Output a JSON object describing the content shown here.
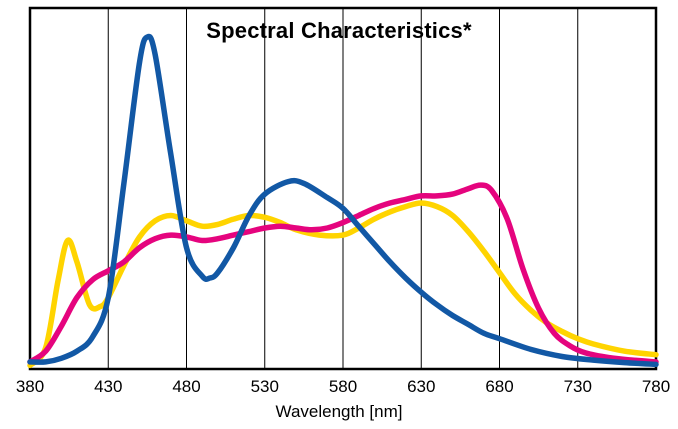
{
  "chart_data": {
    "type": "line",
    "title": "Spectral Characteristics*",
    "xlabel": "Wavelength [nm]",
    "ylabel": "",
    "xlim": [
      380,
      780
    ],
    "ylim": [
      0,
      1
    ],
    "x_ticks": [
      380,
      430,
      480,
      530,
      580,
      630,
      680,
      730,
      780
    ],
    "grid": "vertical",
    "legend": "none",
    "axis_color": "#000000",
    "series": [
      {
        "name": "yellow-channel",
        "color": "#ffd400",
        "points": [
          [
            380,
            0.01
          ],
          [
            390,
            0.06
          ],
          [
            398,
            0.25
          ],
          [
            404,
            0.36
          ],
          [
            410,
            0.3
          ],
          [
            418,
            0.18
          ],
          [
            425,
            0.175
          ],
          [
            430,
            0.2
          ],
          [
            440,
            0.29
          ],
          [
            450,
            0.37
          ],
          [
            460,
            0.415
          ],
          [
            470,
            0.43
          ],
          [
            480,
            0.415
          ],
          [
            490,
            0.4
          ],
          [
            500,
            0.405
          ],
          [
            510,
            0.42
          ],
          [
            520,
            0.43
          ],
          [
            530,
            0.425
          ],
          [
            540,
            0.41
          ],
          [
            550,
            0.39
          ],
          [
            565,
            0.375
          ],
          [
            580,
            0.375
          ],
          [
            590,
            0.395
          ],
          [
            600,
            0.42
          ],
          [
            610,
            0.44
          ],
          [
            620,
            0.455
          ],
          [
            630,
            0.465
          ],
          [
            640,
            0.455
          ],
          [
            650,
            0.43
          ],
          [
            660,
            0.385
          ],
          [
            670,
            0.33
          ],
          [
            680,
            0.27
          ],
          [
            690,
            0.21
          ],
          [
            700,
            0.165
          ],
          [
            710,
            0.13
          ],
          [
            720,
            0.105
          ],
          [
            730,
            0.085
          ],
          [
            740,
            0.07
          ],
          [
            760,
            0.05
          ],
          [
            780,
            0.04
          ]
        ]
      },
      {
        "name": "magenta-channel",
        "color": "#e5047e",
        "points": [
          [
            380,
            0.02
          ],
          [
            390,
            0.05
          ],
          [
            400,
            0.12
          ],
          [
            410,
            0.2
          ],
          [
            420,
            0.25
          ],
          [
            430,
            0.275
          ],
          [
            440,
            0.3
          ],
          [
            450,
            0.34
          ],
          [
            460,
            0.365
          ],
          [
            470,
            0.375
          ],
          [
            480,
            0.37
          ],
          [
            490,
            0.36
          ],
          [
            500,
            0.365
          ],
          [
            510,
            0.375
          ],
          [
            520,
            0.385
          ],
          [
            530,
            0.395
          ],
          [
            540,
            0.4
          ],
          [
            550,
            0.395
          ],
          [
            560,
            0.39
          ],
          [
            570,
            0.395
          ],
          [
            580,
            0.41
          ],
          [
            590,
            0.43
          ],
          [
            600,
            0.45
          ],
          [
            610,
            0.465
          ],
          [
            620,
            0.475
          ],
          [
            630,
            0.485
          ],
          [
            640,
            0.485
          ],
          [
            650,
            0.49
          ],
          [
            660,
            0.505
          ],
          [
            668,
            0.515
          ],
          [
            675,
            0.5
          ],
          [
            685,
            0.42
          ],
          [
            695,
            0.28
          ],
          [
            705,
            0.17
          ],
          [
            715,
            0.1
          ],
          [
            725,
            0.065
          ],
          [
            735,
            0.045
          ],
          [
            750,
            0.032
          ],
          [
            765,
            0.025
          ],
          [
            780,
            0.02
          ]
        ]
      },
      {
        "name": "blue-channel",
        "color": "#1258a5",
        "points": [
          [
            380,
            0.02
          ],
          [
            390,
            0.02
          ],
          [
            400,
            0.03
          ],
          [
            410,
            0.05
          ],
          [
            420,
            0.09
          ],
          [
            430,
            0.2
          ],
          [
            440,
            0.52
          ],
          [
            450,
            0.86
          ],
          [
            455,
            0.93
          ],
          [
            460,
            0.88
          ],
          [
            470,
            0.6
          ],
          [
            480,
            0.34
          ],
          [
            490,
            0.26
          ],
          [
            495,
            0.255
          ],
          [
            500,
            0.27
          ],
          [
            510,
            0.34
          ],
          [
            520,
            0.43
          ],
          [
            530,
            0.49
          ],
          [
            545,
            0.525
          ],
          [
            555,
            0.52
          ],
          [
            570,
            0.48
          ],
          [
            580,
            0.45
          ],
          [
            590,
            0.4
          ],
          [
            600,
            0.35
          ],
          [
            610,
            0.3
          ],
          [
            620,
            0.255
          ],
          [
            630,
            0.215
          ],
          [
            640,
            0.18
          ],
          [
            650,
            0.15
          ],
          [
            660,
            0.125
          ],
          [
            670,
            0.1
          ],
          [
            680,
            0.085
          ],
          [
            700,
            0.055
          ],
          [
            720,
            0.035
          ],
          [
            740,
            0.025
          ],
          [
            760,
            0.018
          ],
          [
            780,
            0.013
          ]
        ]
      }
    ]
  }
}
